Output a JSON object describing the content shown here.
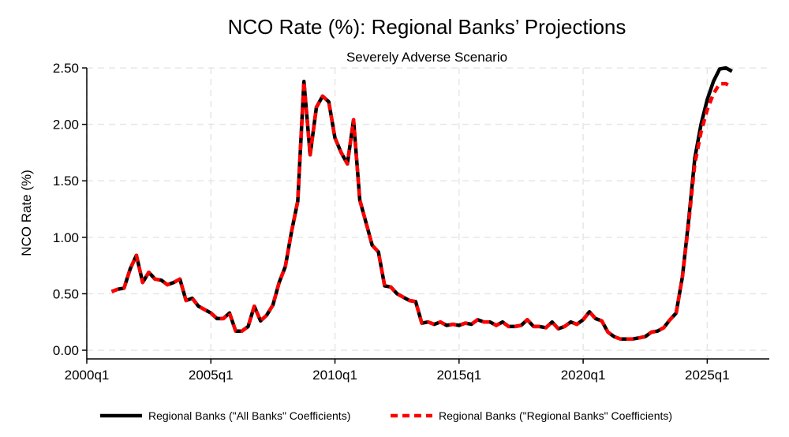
{
  "chart_data": {
    "type": "line",
    "title": "NCO Rate (%): Regional Banks’ Projections",
    "subtitle": "Severely Adverse Scenario",
    "xlabel": "",
    "ylabel": "NCO Rate (%)",
    "xlim": [
      2000.0,
      2027.5
    ],
    "ylim": [
      0.0,
      2.5
    ],
    "x_ticks": [
      {
        "value": 2000.0,
        "label": "2000q1"
      },
      {
        "value": 2005.0,
        "label": "2005q1"
      },
      {
        "value": 2010.0,
        "label": "2010q1"
      },
      {
        "value": 2015.0,
        "label": "2015q1"
      },
      {
        "value": 2020.0,
        "label": "2020q1"
      },
      {
        "value": 2025.0,
        "label": "2025q1"
      }
    ],
    "y_ticks": [
      {
        "value": 0.0,
        "label": "0.00"
      },
      {
        "value": 0.5,
        "label": "0.50"
      },
      {
        "value": 1.0,
        "label": "1.00"
      },
      {
        "value": 1.5,
        "label": "1.50"
      },
      {
        "value": 2.0,
        "label": "2.00"
      },
      {
        "value": 2.5,
        "label": "2.50"
      }
    ],
    "grid": true,
    "legend_position": "bottom",
    "historical": {
      "x": [
        2001.0,
        2001.25,
        2001.5,
        2001.75,
        2002.0,
        2002.25,
        2002.5,
        2002.75,
        2003.0,
        2003.25,
        2003.5,
        2003.75,
        2004.0,
        2004.25,
        2004.5,
        2004.75,
        2005.0,
        2005.25,
        2005.5,
        2005.75,
        2006.0,
        2006.25,
        2006.5,
        2006.75,
        2007.0,
        2007.25,
        2007.5,
        2007.75,
        2008.0,
        2008.25,
        2008.5,
        2008.75,
        2009.0,
        2009.25,
        2009.5,
        2009.75,
        2010.0,
        2010.25,
        2010.5,
        2010.75,
        2011.0,
        2011.25,
        2011.5,
        2011.75,
        2012.0,
        2012.25,
        2012.5,
        2012.75,
        2013.0,
        2013.25,
        2013.5,
        2013.75,
        2014.0,
        2014.25,
        2014.5,
        2014.75,
        2015.0,
        2015.25,
        2015.5,
        2015.75,
        2016.0,
        2016.25,
        2016.5,
        2016.75,
        2017.0,
        2017.25,
        2017.5,
        2017.75,
        2018.0,
        2018.25,
        2018.5,
        2018.75,
        2019.0,
        2019.25,
        2019.5,
        2019.75,
        2020.0,
        2020.25,
        2020.5,
        2020.75,
        2021.0,
        2021.25,
        2021.5,
        2021.75,
        2022.0,
        2022.25,
        2022.5,
        2022.75,
        2023.0,
        2023.25,
        2023.5,
        2023.75
      ],
      "y": [
        0.52,
        0.54,
        0.55,
        0.72,
        0.84,
        0.6,
        0.69,
        0.63,
        0.62,
        0.58,
        0.6,
        0.63,
        0.44,
        0.46,
        0.39,
        0.36,
        0.33,
        0.28,
        0.28,
        0.33,
        0.17,
        0.17,
        0.21,
        0.39,
        0.26,
        0.31,
        0.4,
        0.6,
        0.74,
        1.05,
        1.32,
        2.38,
        1.73,
        2.15,
        2.25,
        2.2,
        1.88,
        1.75,
        1.65,
        2.04,
        1.33,
        1.13,
        0.93,
        0.87,
        0.57,
        0.56,
        0.5,
        0.47,
        0.44,
        0.43,
        0.24,
        0.25,
        0.23,
        0.25,
        0.22,
        0.23,
        0.22,
        0.24,
        0.23,
        0.27,
        0.25,
        0.25,
        0.22,
        0.25,
        0.21,
        0.21,
        0.22,
        0.27,
        0.21,
        0.21,
        0.2,
        0.25,
        0.19,
        0.21,
        0.25,
        0.23,
        0.27,
        0.34,
        0.28,
        0.26,
        0.16,
        0.12,
        0.1,
        0.1,
        0.1,
        0.11,
        0.12,
        0.16,
        0.17,
        0.2,
        0.27,
        0.33
      ]
    },
    "series": [
      {
        "name": "Regional Banks (\"All Banks\" Coefficients)",
        "color": "#000000",
        "style": "solid",
        "projection_x": [
          2024.0,
          2024.25,
          2024.5,
          2024.75,
          2025.0,
          2025.25,
          2025.5,
          2025.75,
          2026.0
        ],
        "projection_y": [
          0.65,
          1.15,
          1.7,
          2.0,
          2.22,
          2.38,
          2.49,
          2.5,
          2.47
        ]
      },
      {
        "name": "Regional Banks (\"Regional Banks\" Coefficients)",
        "color": "#ff0000",
        "style": "dashed",
        "projection_x": [
          2024.0,
          2024.25,
          2024.5,
          2024.75,
          2025.0,
          2025.25,
          2025.5,
          2025.75,
          2026.0
        ],
        "projection_y": [
          0.65,
          1.12,
          1.65,
          1.93,
          2.13,
          2.27,
          2.36,
          2.36,
          2.33
        ]
      }
    ]
  }
}
